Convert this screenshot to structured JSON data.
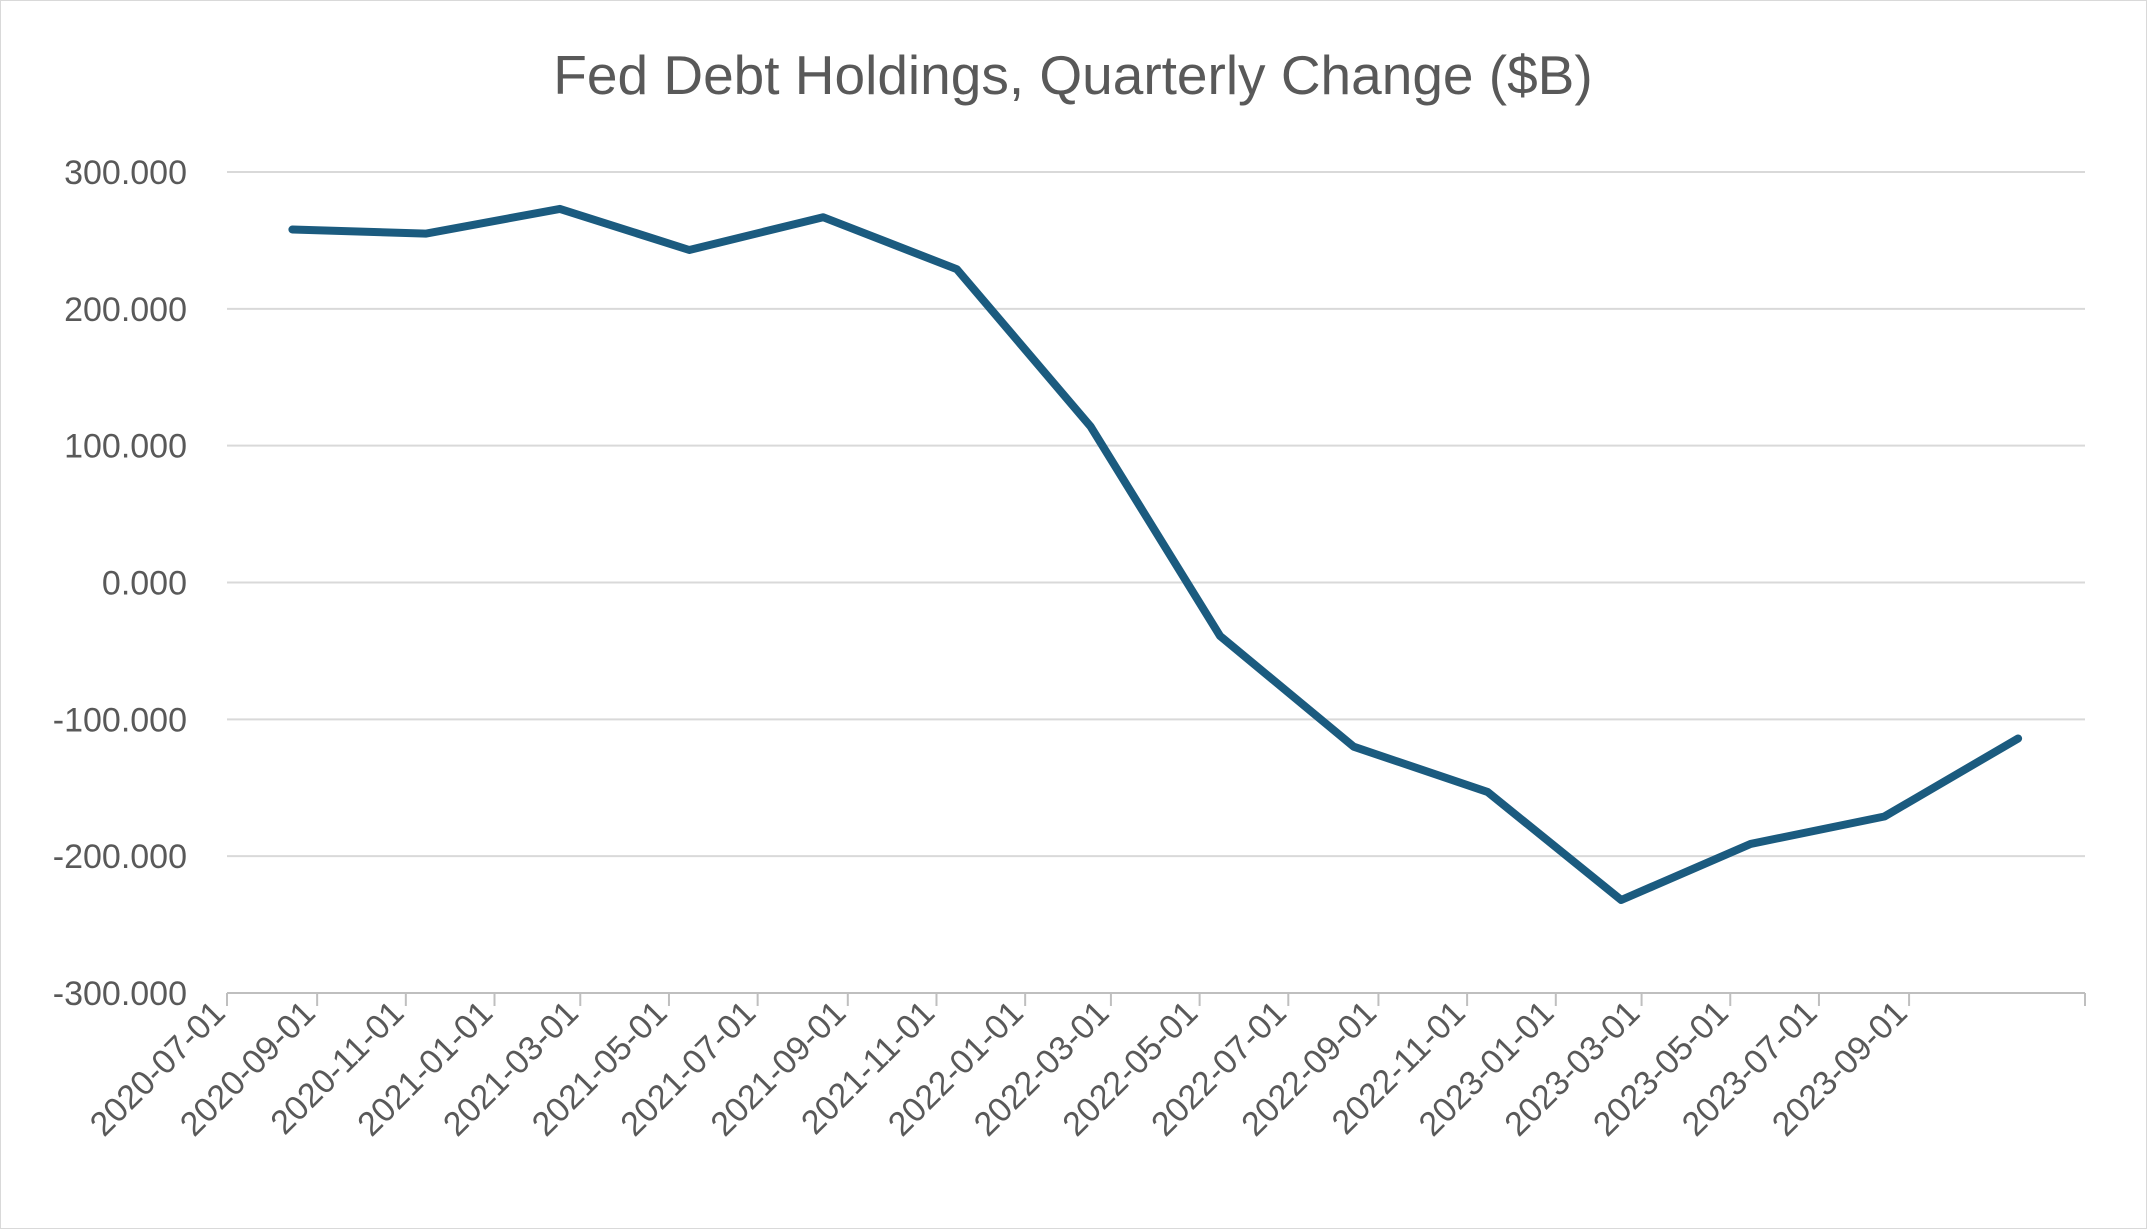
{
  "chart_data": {
    "type": "line",
    "title": "Fed Debt Holdings, Quarterly Change ($B)",
    "xlabel": "",
    "ylabel": "",
    "ylim": [
      -300,
      300
    ],
    "y_ticks": [
      300,
      200,
      100,
      0,
      -100,
      -200,
      -300
    ],
    "y_tick_labels": [
      "300.000",
      "200.000",
      "100.000",
      "0.000",
      "-100.000",
      "-200.000",
      "-300.000"
    ],
    "x_range": [
      "2020-07-01",
      "2023-12-31"
    ],
    "x_tick_labels": [
      "2020-07-01",
      "2020-09-01",
      "2020-11-01",
      "2021-01-01",
      "2021-03-01",
      "2021-05-01",
      "2021-07-01",
      "2021-09-01",
      "2021-11-01",
      "2022-01-01",
      "2022-03-01",
      "2022-05-01",
      "2022-07-01",
      "2022-09-01",
      "2022-11-01",
      "2023-01-01",
      "2023-03-01",
      "2023-05-01",
      "2023-07-01",
      "2023-09-01"
    ],
    "grid": true,
    "legend": "none",
    "series": [
      {
        "color": "#1b5b7f",
        "x": [
          "2020-08-15",
          "2020-11-15",
          "2021-02-15",
          "2021-05-15",
          "2021-08-15",
          "2021-11-15",
          "2022-02-15",
          "2022-05-15",
          "2022-08-15",
          "2022-11-15",
          "2023-02-15",
          "2023-05-15",
          "2023-08-15",
          "2023-11-15"
        ],
        "values": [
          258,
          255,
          273,
          243,
          267,
          229,
          114,
          -39,
          -120,
          -153,
          -232,
          -191,
          -171,
          -114
        ]
      }
    ]
  }
}
